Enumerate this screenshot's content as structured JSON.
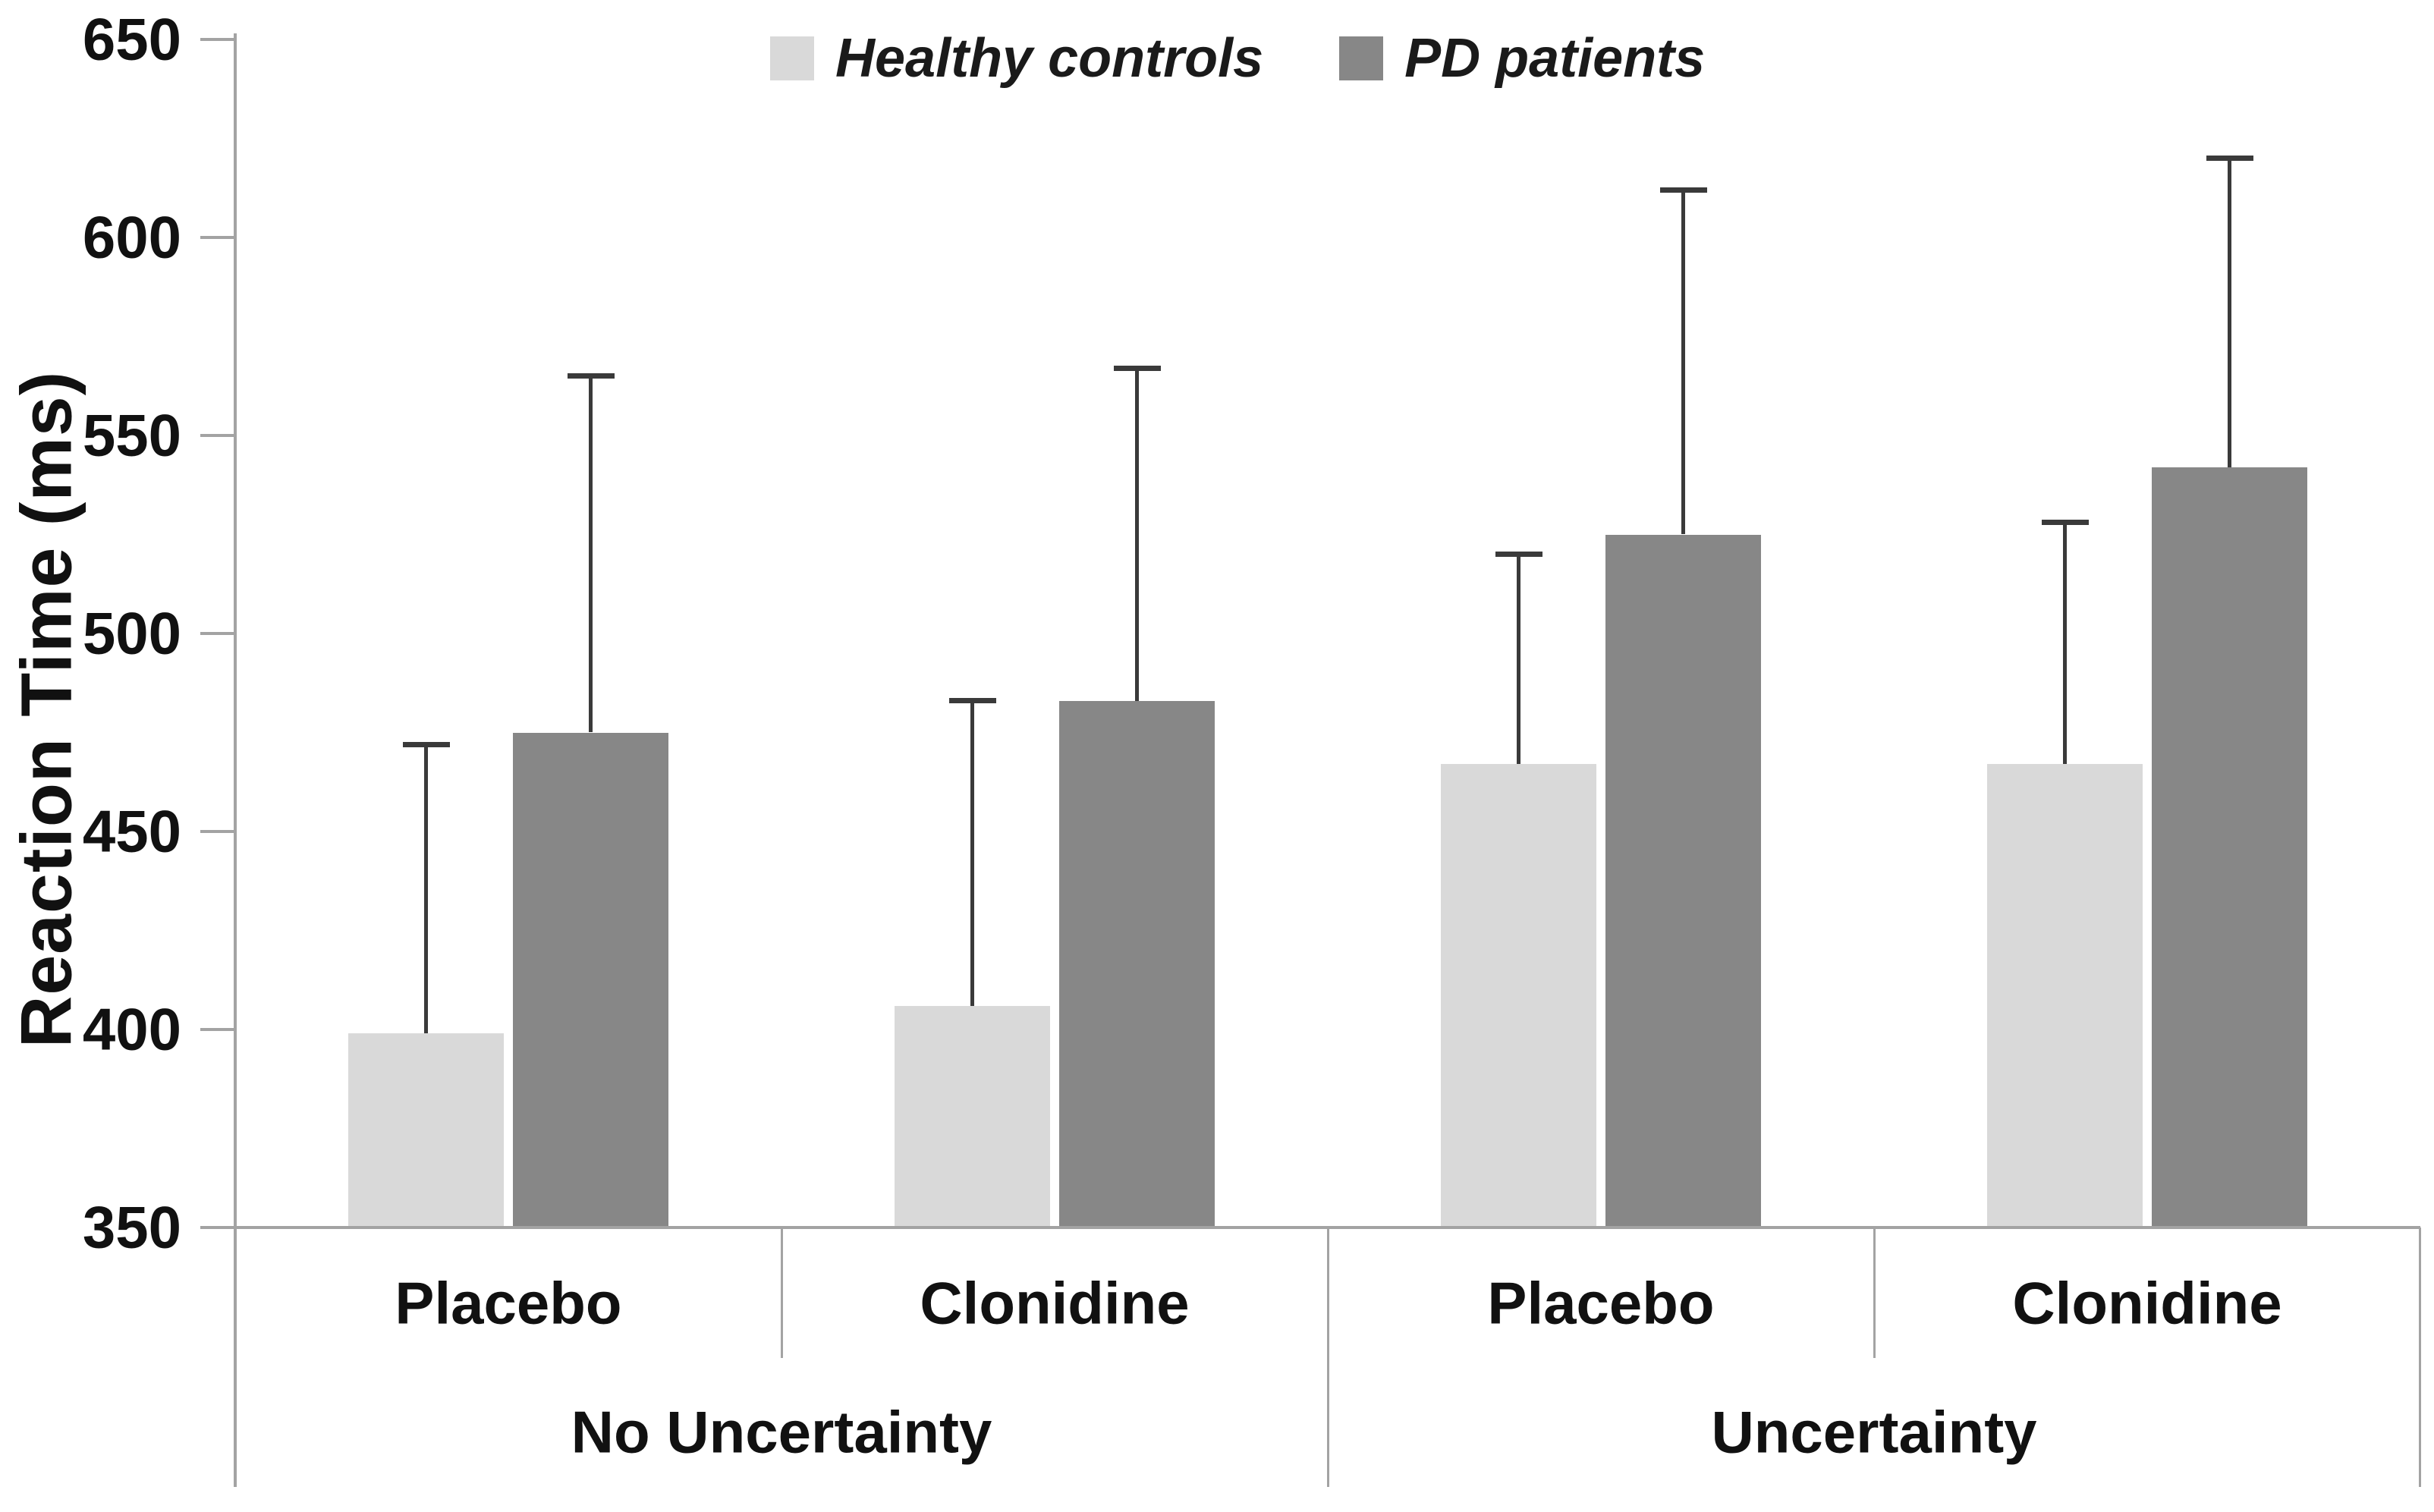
{
  "chart_data": {
    "type": "bar",
    "title": "",
    "ylabel": "Reaction Time (ms)",
    "xlabel": "",
    "ylim": [
      350,
      650
    ],
    "yticks": [
      350,
      400,
      450,
      500,
      550,
      600,
      650
    ],
    "grid": false,
    "legend_position": "top",
    "categories": [
      "Placebo",
      "Clonidine",
      "Placebo",
      "Clonidine"
    ],
    "group_labels": [
      "No Uncertainty",
      "Uncertainty"
    ],
    "groups_span": [
      [
        0,
        1
      ],
      [
        2,
        3
      ]
    ],
    "series": [
      {
        "name": "Healthy controls",
        "color": "#d9d9d9",
        "values": [
          399,
          406,
          467,
          467
        ],
        "error_plus": [
          73,
          77,
          53,
          61
        ]
      },
      {
        "name": "PD patients",
        "color": "#878787",
        "values": [
          475,
          483,
          525,
          542
        ],
        "error_plus": [
          90,
          84,
          87,
          78
        ]
      }
    ],
    "colors": {
      "error_bar": "#3a3a3a",
      "axis_line": "#a3a3a3",
      "text": "#111111",
      "background": "#ffffff"
    }
  }
}
